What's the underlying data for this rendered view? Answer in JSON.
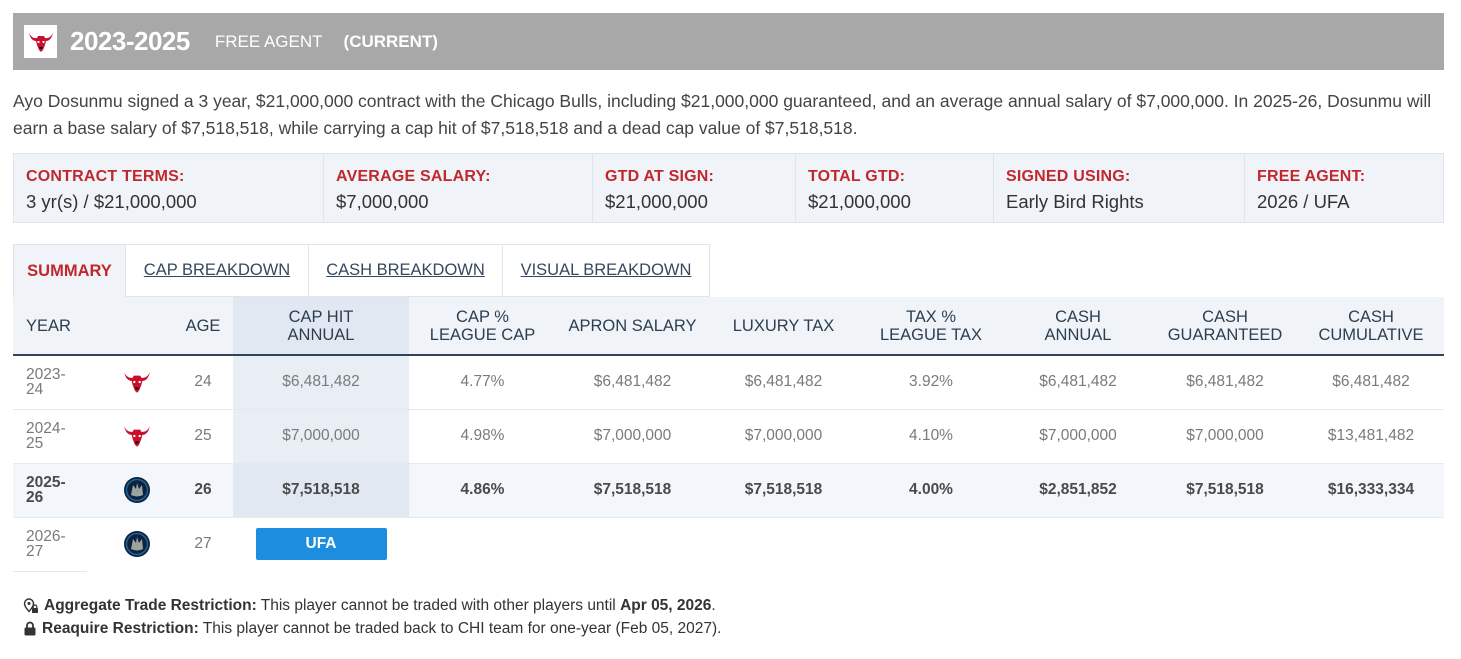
{
  "header": {
    "logo_icon": "bulls-logo-icon",
    "years": "2023-2025",
    "status": "FREE AGENT",
    "current": "(CURRENT)",
    "bg_color": "#a8a8a8"
  },
  "description": "Ayo Dosunmu signed a 3 year, $21,000,000 contract with the Chicago Bulls, including $21,000,000 guaranteed, and an average annual salary of $7,000,000. In 2025-26, Dosunmu will earn a base salary of $7,518,518, while carrying a cap hit of $7,518,518 and a dead cap value of $7,518,518.",
  "terms": [
    {
      "label": "CONTRACT TERMS:",
      "value": "3 yr(s) / $21,000,000"
    },
    {
      "label": "AVERAGE SALARY:",
      "value": "$7,000,000"
    },
    {
      "label": "GTD AT SIGN:",
      "value": "$21,000,000"
    },
    {
      "label": "TOTAL GTD:",
      "value": "$21,000,000"
    },
    {
      "label": "SIGNED USING:",
      "value": "Early Bird Rights"
    },
    {
      "label": "FREE AGENT:",
      "value": "2026 / UFA"
    }
  ],
  "tabs": [
    {
      "label": "SUMMARY",
      "active": true
    },
    {
      "label": "CAP BREAKDOWN",
      "active": false
    },
    {
      "label": "CASH BREAKDOWN",
      "active": false
    },
    {
      "label": "VISUAL BREAKDOWN",
      "active": false
    }
  ],
  "table": {
    "headers": {
      "year": "YEAR",
      "age": "AGE",
      "cap_hit_1": "CAP HIT",
      "cap_hit_2": "ANNUAL",
      "cap_pct_1": "CAP %",
      "cap_pct_2": "LEAGUE CAP",
      "apron": "APRON SALARY",
      "luxury": "LUXURY TAX",
      "tax_pct_1": "TAX %",
      "tax_pct_2": "LEAGUE TAX",
      "cash_annual_1": "CASH",
      "cash_annual_2": "ANNUAL",
      "cash_gtd_1": "CASH",
      "cash_gtd_2": "GUARANTEED",
      "cash_cum_1": "CASH",
      "cash_cum_2": "CUMULATIVE"
    },
    "rows": [
      {
        "year_1": "2023-",
        "year_2": "24",
        "team_icon": "bulls-logo-icon",
        "age": "24",
        "cap_hit": "$6,481,482",
        "cap_pct": "4.77%",
        "apron": "$6,481,482",
        "luxury": "$6,481,482",
        "tax_pct": "3.92%",
        "cash_annual": "$6,481,482",
        "cash_gtd": "$6,481,482",
        "cash_cum": "$6,481,482"
      },
      {
        "year_1": "2024-",
        "year_2": "25",
        "team_icon": "bulls-logo-icon",
        "age": "25",
        "cap_hit": "$7,000,000",
        "cap_pct": "4.98%",
        "apron": "$7,000,000",
        "luxury": "$7,000,000",
        "tax_pct": "4.10%",
        "cash_annual": "$7,000,000",
        "cash_gtd": "$7,000,000",
        "cash_cum": "$13,481,482"
      },
      {
        "year_1": "2025-",
        "year_2": "26",
        "team_icon": "timberwolves-logo-icon",
        "age": "26",
        "cap_hit": "$7,518,518",
        "cap_pct": "4.86%",
        "apron": "$7,518,518",
        "luxury": "$7,518,518",
        "tax_pct": "4.00%",
        "cash_annual": "$2,851,852",
        "cash_gtd": "$7,518,518",
        "cash_cum": "$16,333,334"
      },
      {
        "year_1": "2026-",
        "year_2": "27",
        "team_icon": "timberwolves-logo-icon",
        "age": "27",
        "badge": "UFA"
      }
    ]
  },
  "notes": {
    "aggregate": {
      "icon": "location-lock-icon",
      "title": "Aggregate Trade Restriction:",
      "text": " This player cannot be traded with other players until ",
      "date": "Apr 05, 2026",
      "end": "."
    },
    "reacquire": {
      "icon": "lock-icon",
      "title": "Reaquire Restriction:",
      "text": " This player cannot be traded back to CHI team for one-year (Feb 05, 2027)."
    }
  },
  "colors": {
    "accent_red": "#c0282d",
    "navy": "#354156",
    "ufa_blue": "#1c8ddf",
    "panel_bg": "#f0f4f9"
  }
}
